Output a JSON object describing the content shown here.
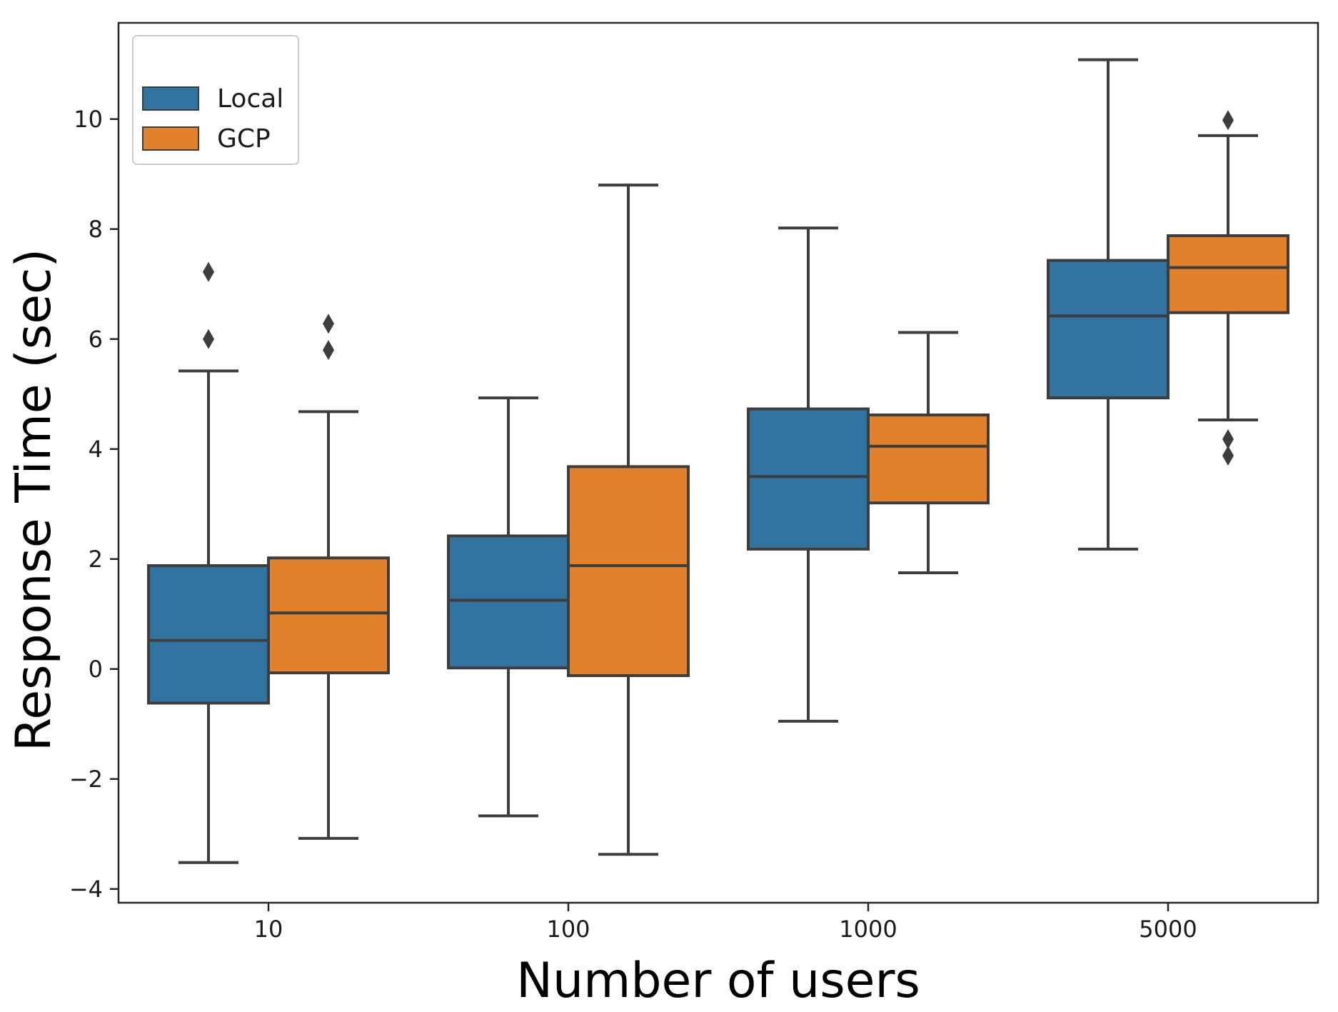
{
  "chart_data": {
    "type": "box",
    "categories": [
      "10",
      "100",
      "1000",
      "5000"
    ],
    "xlabel": "Number of users",
    "ylabel": "Response Time (sec)",
    "ylim": [
      -4.25,
      11.75
    ],
    "yticks": [
      -4,
      -2,
      0,
      2,
      4,
      6,
      8,
      10
    ],
    "ytick_labels": [
      "−4",
      "−2",
      "0",
      "2",
      "4",
      "6",
      "8",
      "10"
    ],
    "grid": false,
    "legend_position": "top-left",
    "colors": {
      "Local": "#3274a1",
      "GCP": "#e1812c",
      "edge": "#3d3d3d"
    },
    "series": [
      {
        "name": "Local",
        "boxes": [
          {
            "whisker_low": -3.52,
            "q1": -0.62,
            "median": 0.52,
            "q3": 1.88,
            "whisker_high": 5.42,
            "outliers": [
              6.0,
              7.22
            ]
          },
          {
            "whisker_low": -2.67,
            "q1": 0.02,
            "median": 1.25,
            "q3": 2.42,
            "whisker_high": 4.93,
            "outliers": []
          },
          {
            "whisker_low": -0.95,
            "q1": 2.18,
            "median": 3.5,
            "q3": 4.73,
            "whisker_high": 8.02,
            "outliers": []
          },
          {
            "whisker_low": 2.18,
            "q1": 4.93,
            "median": 6.42,
            "q3": 7.43,
            "whisker_high": 11.08,
            "outliers": []
          }
        ]
      },
      {
        "name": "GCP",
        "boxes": [
          {
            "whisker_low": -3.08,
            "q1": -0.07,
            "median": 1.02,
            "q3": 2.02,
            "whisker_high": 4.68,
            "outliers": [
              5.8,
              6.28
            ]
          },
          {
            "whisker_low": -3.37,
            "q1": -0.12,
            "median": 1.88,
            "q3": 3.68,
            "whisker_high": 8.8,
            "outliers": []
          },
          {
            "whisker_low": 1.75,
            "q1": 3.02,
            "median": 4.05,
            "q3": 4.62,
            "whisker_high": 6.12,
            "outliers": []
          },
          {
            "whisker_low": 4.53,
            "q1": 6.48,
            "median": 7.3,
            "q3": 7.88,
            "whisker_high": 9.7,
            "outliers": [
              3.88,
              4.18,
              9.98
            ]
          }
        ]
      }
    ]
  }
}
